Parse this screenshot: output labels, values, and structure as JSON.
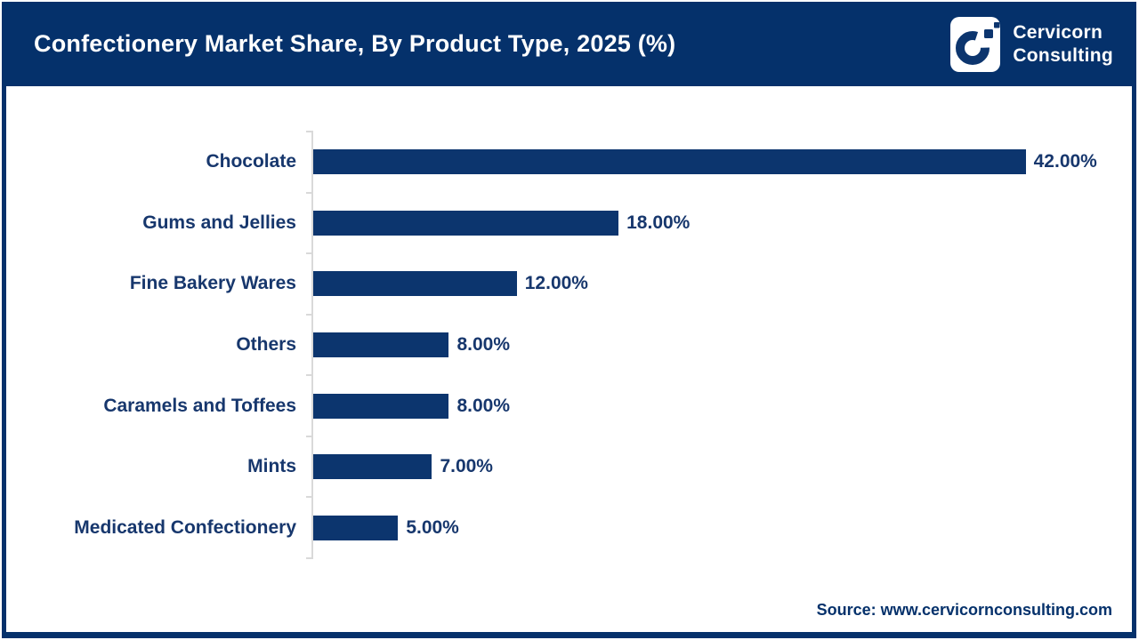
{
  "header": {
    "title": "Confectionery Market Share, By Product Type, 2025 (%)",
    "brand_line1": "Cervicorn",
    "brand_line2": "Consulting",
    "logo_icon": "cervicorn-c-mark"
  },
  "chart_data": {
    "type": "bar",
    "orientation": "horizontal",
    "title": "Confectionery Market Share, By Product Type, 2025 (%)",
    "categories": [
      "Chocolate",
      "Gums and Jellies",
      "Fine Bakery Wares",
      "Others",
      "Caramels and Toffees",
      "Mints",
      "Medicated Confectionery"
    ],
    "values": [
      42,
      18,
      12,
      8,
      8,
      7,
      5
    ],
    "value_labels": [
      "42.00%",
      "18.00%",
      "12.00%",
      "8.00%",
      "8.00%",
      "7.00%",
      "5.00%"
    ],
    "xlabel": "",
    "ylabel": "",
    "xlim": [
      0,
      48
    ],
    "grid": false,
    "legend": "none",
    "bar_color": "#0C356E",
    "axis_line_color": "#d9d9d9"
  },
  "colors": {
    "header_navy": "#05316B",
    "bar_navy": "#0C356E",
    "label_navy": "#17376D",
    "axis_gray": "#d9d9d9",
    "background": "#ffffff"
  },
  "footer": {
    "source": "Source: www.cervicornconsulting.com"
  }
}
